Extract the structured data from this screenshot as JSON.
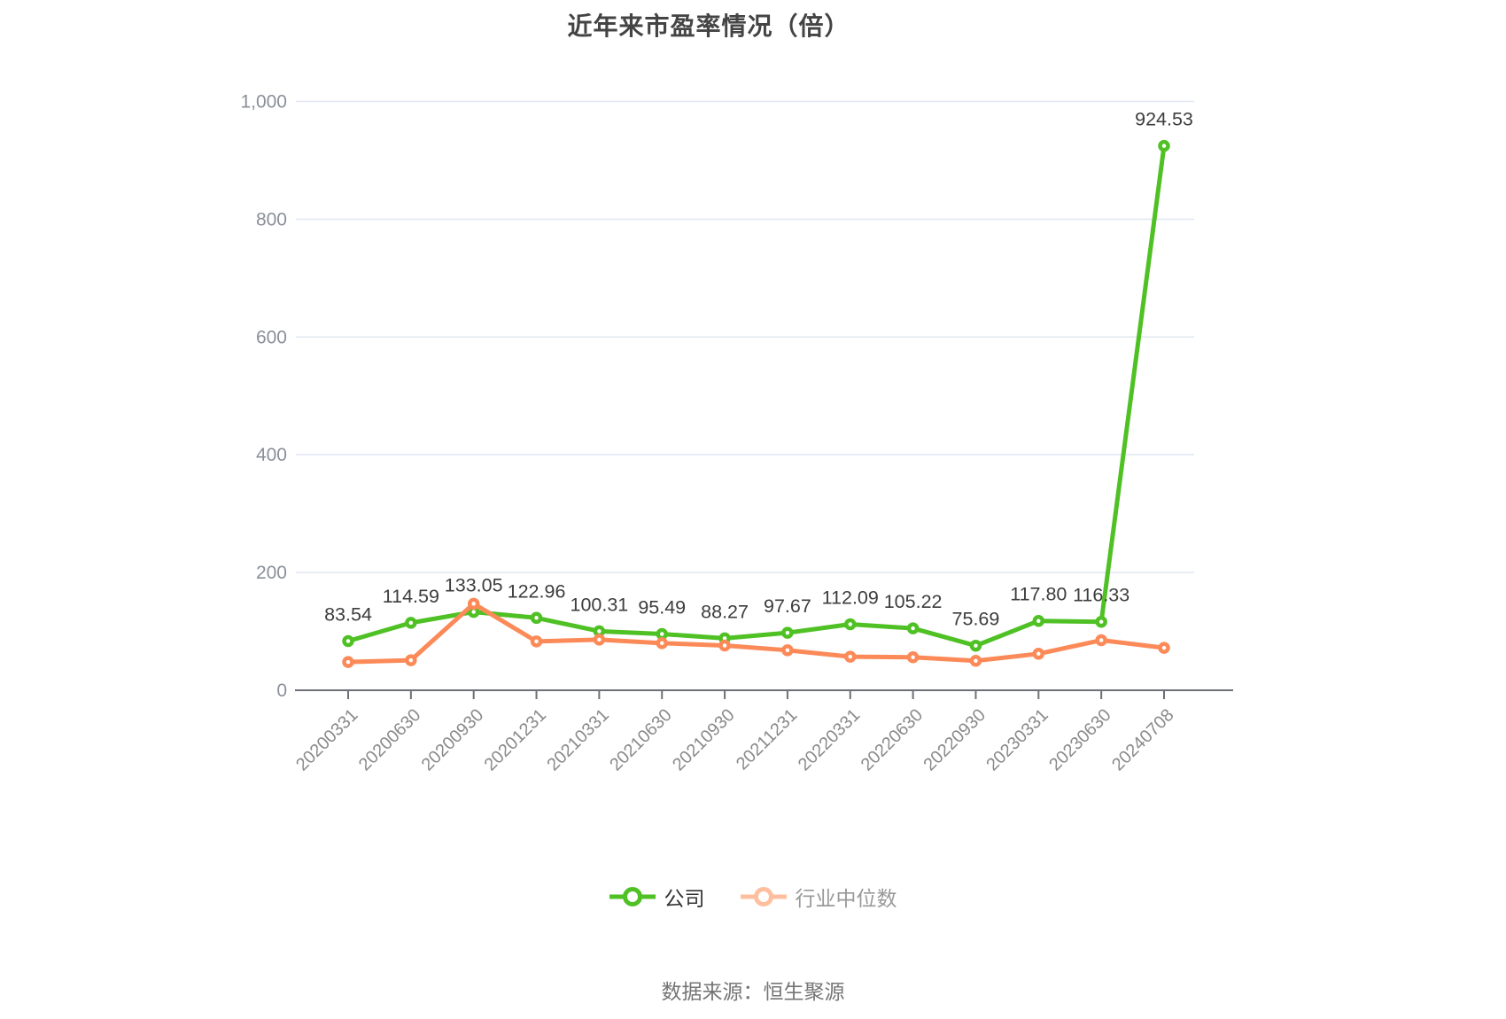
{
  "title": "近年来市盈率情况（倍）",
  "source": "数据来源：恒生聚源",
  "legend": {
    "items": [
      {
        "label": "公司",
        "marker_color": "#4fc124",
        "text_color": "#333333"
      },
      {
        "label": "行业中位数",
        "marker_color": "#ffbf9f",
        "text_color": "#999999"
      }
    ]
  },
  "chart_data": {
    "type": "line",
    "title": "近年来市盈率情况（倍）",
    "xlabel": "",
    "ylabel": "",
    "grid": true,
    "legend_position": "bottom",
    "ylim": [
      0,
      1000
    ],
    "yticks": {
      "values": [
        0,
        200,
        400,
        600,
        800,
        1000
      ],
      "labels": [
        "0",
        "200",
        "400",
        "600",
        "800",
        "1,000"
      ]
    },
    "categories": [
      "20200331",
      "20200630",
      "20200930",
      "20201231",
      "20210331",
      "20210630",
      "20210930",
      "20211231",
      "20220331",
      "20220630",
      "20220930",
      "20230331",
      "20230630",
      "20240708"
    ],
    "series": [
      {
        "name": "公司",
        "color": "#4fc124",
        "show_labels": true,
        "values": [
          83.54,
          114.59,
          133.05,
          122.96,
          100.31,
          95.49,
          88.27,
          97.67,
          112.09,
          105.22,
          75.69,
          117.8,
          116.33,
          924.53
        ],
        "labels": [
          "83.54",
          "114.59",
          "133.05",
          "122.96",
          "100.31",
          "95.49",
          "88.27",
          "97.67",
          "112.09",
          "105.22",
          "75.69",
          "117.80",
          "116.33",
          "924.53"
        ]
      },
      {
        "name": "行业中位数",
        "color": "#fc8a58",
        "show_labels": false,
        "values": [
          48,
          51,
          147,
          83,
          86,
          80,
          76,
          68,
          57,
          56,
          50,
          62,
          85,
          72
        ],
        "labels": []
      }
    ],
    "colors": {
      "grid_line": "#e2e8f2",
      "axis_line": "#6e7079",
      "axis_text": "#8a8f99",
      "value_label_text": "#3d3d3d"
    }
  }
}
